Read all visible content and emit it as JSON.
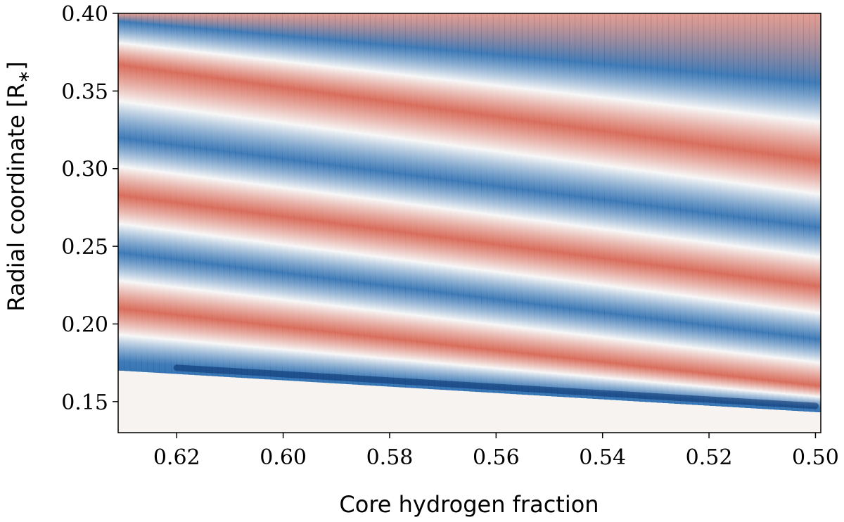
{
  "chart_data": {
    "type": "heatmap",
    "title": "",
    "xlabel": "Core hydrogen fraction",
    "ylabel": "Radial coordinate [R",
    "ylabel_subscript": "∗",
    "ylabel_close": "]",
    "x_reversed": true,
    "xlim": [
      0.631,
      0.499
    ],
    "ylim": [
      0.13,
      0.4
    ],
    "x_ticks": [
      0.62,
      0.6,
      0.58,
      0.56,
      0.54,
      0.52,
      0.5
    ],
    "x_tick_labels": [
      "0.62",
      "0.60",
      "0.58",
      "0.56",
      "0.54",
      "0.52",
      "0.50"
    ],
    "y_ticks": [
      0.15,
      0.2,
      0.25,
      0.3,
      0.35,
      0.4
    ],
    "y_tick_labels": [
      "0.15",
      "0.20",
      "0.25",
      "0.30",
      "0.35",
      "0.40"
    ],
    "colormap": "diverging blue-white-red",
    "colors": {
      "negative": "#2166ac",
      "negative_extreme": "#08306b",
      "zero": "#f7f7f7",
      "positive": "#d6604d",
      "below_boundary": "#f7f3f1"
    },
    "boundary_radius": {
      "x": [
        0.631,
        0.499
      ],
      "y": [
        0.17,
        0.143
      ]
    },
    "band_centers": [
      {
        "sign": "negative",
        "x": [
          0.631,
          0.499
        ],
        "y": [
          0.395,
          0.355
        ]
      },
      {
        "sign": "positive",
        "x": [
          0.631,
          0.499
        ],
        "y": [
          0.367,
          0.305
        ]
      },
      {
        "sign": "negative",
        "x": [
          0.631,
          0.499
        ],
        "y": [
          0.32,
          0.262
        ]
      },
      {
        "sign": "positive",
        "x": [
          0.631,
          0.499
        ],
        "y": [
          0.283,
          0.224
        ]
      },
      {
        "sign": "negative",
        "x": [
          0.631,
          0.499
        ],
        "y": [
          0.246,
          0.19
        ]
      },
      {
        "sign": "positive",
        "x": [
          0.631,
          0.499
        ],
        "y": [
          0.21,
          0.16
        ]
      },
      {
        "sign": "negative",
        "x": [
          0.631,
          0.499
        ],
        "y": [
          0.176,
          0.146
        ]
      }
    ]
  }
}
